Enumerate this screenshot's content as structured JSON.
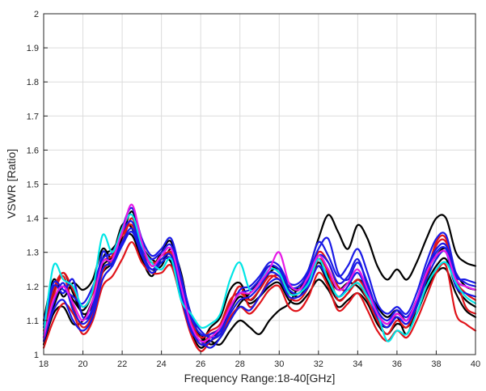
{
  "chart_data": {
    "type": "line",
    "title": "",
    "xlabel": "Frequency Range:18-40[GHz]",
    "ylabel": "VSWR [Ratio]",
    "xlim": [
      18,
      40
    ],
    "ylim": [
      1,
      2
    ],
    "grid": true,
    "legend": "none",
    "x_ticks": [
      "18",
      "20",
      "22",
      "24",
      "26",
      "28",
      "30",
      "32",
      "34",
      "36",
      "38",
      "40"
    ],
    "y_ticks": [
      "1",
      "1.1",
      "1.2",
      "1.3",
      "1.4",
      "1.5",
      "1.6",
      "1.7",
      "1.8",
      "1.9",
      "2"
    ],
    "x": [
      18,
      18.5,
      19,
      19.5,
      20,
      20.5,
      21,
      21.5,
      22,
      22.5,
      23,
      23.5,
      24,
      24.5,
      25,
      25.5,
      26,
      26.5,
      27,
      27.5,
      28,
      28.5,
      29,
      29.5,
      30,
      30.5,
      31,
      31.5,
      32,
      32.5,
      33,
      33.5,
      34,
      34.5,
      35,
      35.5,
      36,
      36.5,
      37,
      37.5,
      38,
      38.5,
      39,
      39.5,
      40
    ],
    "series": [
      {
        "color": "#000000",
        "values": [
          1.05,
          1.18,
          1.24,
          1.18,
          1.12,
          1.15,
          1.28,
          1.31,
          1.35,
          1.42,
          1.33,
          1.26,
          1.3,
          1.33,
          1.2,
          1.09,
          1.06,
          1.03,
          1.05,
          1.1,
          1.15,
          1.18,
          1.22,
          1.26,
          1.24,
          1.2,
          1.19,
          1.25,
          1.34,
          1.41,
          1.36,
          1.31,
          1.38,
          1.34,
          1.26,
          1.22,
          1.25,
          1.22,
          1.27,
          1.34,
          1.4,
          1.4,
          1.3,
          1.27,
          1.26
        ]
      },
      {
        "color": "#000000",
        "values": [
          1.1,
          1.22,
          1.17,
          1.21,
          1.19,
          1.22,
          1.31,
          1.28,
          1.33,
          1.4,
          1.32,
          1.28,
          1.27,
          1.3,
          1.22,
          1.12,
          1.05,
          1.04,
          1.03,
          1.07,
          1.1,
          1.08,
          1.06,
          1.1,
          1.13,
          1.15,
          1.2,
          1.22,
          1.27,
          1.23,
          1.19,
          1.21,
          1.2,
          1.16,
          1.1,
          1.08,
          1.11,
          1.06,
          1.14,
          1.24,
          1.29,
          1.31,
          1.24,
          1.2,
          1.19
        ]
      },
      {
        "color": "#000000",
        "values": [
          1.06,
          1.14,
          1.2,
          1.16,
          1.13,
          1.18,
          1.26,
          1.29,
          1.38,
          1.37,
          1.29,
          1.25,
          1.26,
          1.31,
          1.24,
          1.1,
          1.04,
          1.08,
          1.11,
          1.19,
          1.21,
          1.16,
          1.19,
          1.24,
          1.25,
          1.19,
          1.17,
          1.21,
          1.26,
          1.21,
          1.16,
          1.18,
          1.22,
          1.19,
          1.14,
          1.11,
          1.13,
          1.1,
          1.16,
          1.21,
          1.26,
          1.28,
          1.2,
          1.16,
          1.14
        ]
      },
      {
        "color": "#000000",
        "values": [
          1.03,
          1.12,
          1.14,
          1.09,
          1.1,
          1.16,
          1.24,
          1.27,
          1.34,
          1.35,
          1.28,
          1.23,
          1.28,
          1.27,
          1.18,
          1.07,
          1.02,
          1.05,
          1.07,
          1.13,
          1.17,
          1.15,
          1.17,
          1.2,
          1.21,
          1.16,
          1.15,
          1.18,
          1.22,
          1.19,
          1.14,
          1.16,
          1.18,
          1.15,
          1.09,
          1.06,
          1.09,
          1.08,
          1.12,
          1.19,
          1.24,
          1.25,
          1.18,
          1.13,
          1.11
        ]
      },
      {
        "color": "#e0141a",
        "values": [
          1.04,
          1.17,
          1.23,
          1.14,
          1.08,
          1.12,
          1.24,
          1.28,
          1.33,
          1.4,
          1.32,
          1.26,
          1.29,
          1.29,
          1.18,
          1.08,
          1.03,
          1.06,
          1.08,
          1.15,
          1.2,
          1.14,
          1.17,
          1.22,
          1.23,
          1.17,
          1.16,
          1.2,
          1.28,
          1.24,
          1.16,
          1.18,
          1.21,
          1.16,
          1.1,
          1.06,
          1.1,
          1.08,
          1.14,
          1.22,
          1.32,
          1.33,
          1.23,
          1.14,
          1.12
        ]
      },
      {
        "color": "#e0141a",
        "values": [
          1.02,
          1.1,
          1.15,
          1.12,
          1.06,
          1.1,
          1.2,
          1.23,
          1.28,
          1.33,
          1.27,
          1.24,
          1.24,
          1.26,
          1.16,
          1.06,
          1.01,
          1.04,
          1.06,
          1.11,
          1.14,
          1.12,
          1.15,
          1.19,
          1.2,
          1.14,
          1.13,
          1.17,
          1.24,
          1.2,
          1.13,
          1.15,
          1.18,
          1.13,
          1.07,
          1.04,
          1.07,
          1.05,
          1.1,
          1.17,
          1.24,
          1.26,
          1.12,
          1.09,
          1.07
        ]
      },
      {
        "color": "#e0141a",
        "values": [
          1.07,
          1.19,
          1.24,
          1.19,
          1.14,
          1.18,
          1.27,
          1.29,
          1.35,
          1.38,
          1.3,
          1.27,
          1.28,
          1.3,
          1.21,
          1.1,
          1.05,
          1.07,
          1.09,
          1.16,
          1.18,
          1.16,
          1.19,
          1.23,
          1.22,
          1.18,
          1.18,
          1.22,
          1.3,
          1.27,
          1.2,
          1.19,
          1.22,
          1.18,
          1.12,
          1.09,
          1.12,
          1.1,
          1.15,
          1.23,
          1.33,
          1.34,
          1.22,
          1.18,
          1.16
        ]
      },
      {
        "color": "#1a1ae6",
        "values": [
          1.08,
          1.2,
          1.18,
          1.22,
          1.11,
          1.14,
          1.3,
          1.26,
          1.37,
          1.43,
          1.34,
          1.29,
          1.31,
          1.34,
          1.23,
          1.12,
          1.07,
          1.05,
          1.06,
          1.13,
          1.19,
          1.2,
          1.23,
          1.27,
          1.26,
          1.21,
          1.21,
          1.25,
          1.33,
          1.29,
          1.23,
          1.26,
          1.31,
          1.24,
          1.15,
          1.12,
          1.14,
          1.12,
          1.18,
          1.27,
          1.34,
          1.35,
          1.24,
          1.21,
          1.2
        ]
      },
      {
        "color": "#1a1ae6",
        "values": [
          1.04,
          1.13,
          1.16,
          1.1,
          1.07,
          1.11,
          1.22,
          1.26,
          1.32,
          1.36,
          1.29,
          1.24,
          1.27,
          1.28,
          1.17,
          1.07,
          1.04,
          1.02,
          1.05,
          1.1,
          1.14,
          1.13,
          1.17,
          1.21,
          1.22,
          1.17,
          1.17,
          1.2,
          1.26,
          1.22,
          1.17,
          1.2,
          1.24,
          1.18,
          1.11,
          1.08,
          1.11,
          1.09,
          1.14,
          1.22,
          1.28,
          1.3,
          1.2,
          1.18,
          1.17
        ]
      },
      {
        "color": "#1a1ae6",
        "values": [
          1.09,
          1.21,
          1.19,
          1.17,
          1.15,
          1.2,
          1.28,
          1.3,
          1.36,
          1.39,
          1.31,
          1.28,
          1.3,
          1.32,
          1.22,
          1.11,
          1.06,
          1.06,
          1.08,
          1.14,
          1.18,
          1.19,
          1.22,
          1.26,
          1.25,
          1.2,
          1.2,
          1.24,
          1.31,
          1.34,
          1.24,
          1.22,
          1.27,
          1.21,
          1.13,
          1.1,
          1.13,
          1.11,
          1.16,
          1.25,
          1.31,
          1.32,
          1.23,
          1.22,
          1.21
        ]
      },
      {
        "color": "#1a1ae6",
        "values": [
          1.05,
          1.15,
          1.21,
          1.13,
          1.09,
          1.13,
          1.25,
          1.27,
          1.33,
          1.37,
          1.3,
          1.25,
          1.28,
          1.29,
          1.19,
          1.08,
          1.03,
          1.04,
          1.07,
          1.12,
          1.16,
          1.17,
          1.2,
          1.24,
          1.23,
          1.19,
          1.18,
          1.22,
          1.29,
          1.27,
          1.21,
          1.23,
          1.28,
          1.2,
          1.12,
          1.09,
          1.12,
          1.1,
          1.15,
          1.24,
          1.3,
          1.31,
          1.22,
          1.2,
          1.19
        ]
      },
      {
        "color": "#00e5e5",
        "values": [
          1.06,
          1.26,
          1.22,
          1.2,
          1.14,
          1.19,
          1.35,
          1.3,
          1.37,
          1.41,
          1.32,
          1.27,
          1.25,
          1.28,
          1.16,
          1.12,
          1.08,
          1.09,
          1.12,
          1.22,
          1.27,
          1.19,
          1.21,
          1.25,
          1.24,
          1.18,
          1.18,
          1.21,
          1.28,
          1.22,
          1.17,
          1.19,
          1.21,
          1.17,
          1.12,
          1.04,
          1.07,
          1.06,
          1.12,
          1.2,
          1.25,
          1.27,
          1.21,
          1.17,
          1.15
        ]
      },
      {
        "color": "#e61ae6",
        "values": [
          1.05,
          1.16,
          1.2,
          1.15,
          1.1,
          1.16,
          1.27,
          1.28,
          1.36,
          1.44,
          1.33,
          1.26,
          1.29,
          1.31,
          1.2,
          1.09,
          1.04,
          1.05,
          1.08,
          1.14,
          1.18,
          1.18,
          1.21,
          1.25,
          1.3,
          1.21,
          1.19,
          1.23,
          1.29,
          1.25,
          1.19,
          1.21,
          1.25,
          1.19,
          1.12,
          1.09,
          1.12,
          1.1,
          1.16,
          1.24,
          1.29,
          1.3,
          1.22,
          1.2,
          1.19
        ]
      }
    ]
  }
}
